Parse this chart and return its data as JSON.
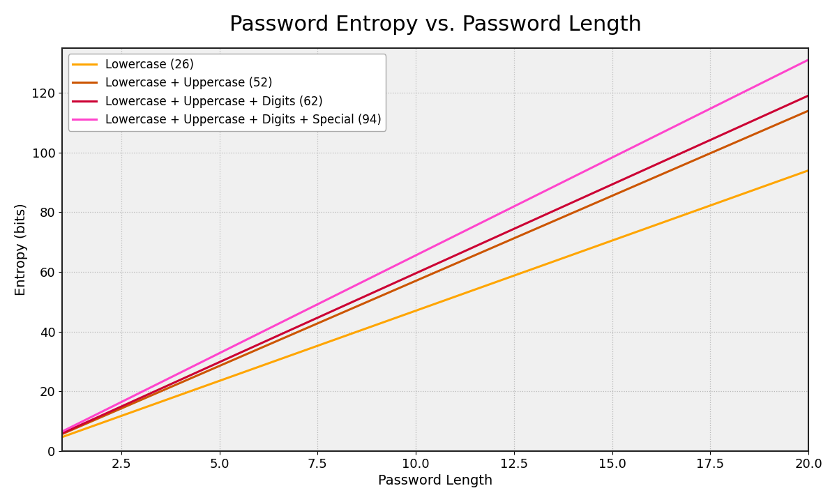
{
  "title": "Password Entropy vs. Password Length",
  "xlabel": "Password Length",
  "ylabel": "Entropy (bits)",
  "x_start": 1,
  "x_end": 20,
  "ylim": [
    0,
    135
  ],
  "xlim": [
    1,
    20
  ],
  "series": [
    {
      "label": "Lowercase (26)",
      "charset_size": 26,
      "color": "#FFA500"
    },
    {
      "label": "Lowercase + Uppercase (52)",
      "charset_size": 52,
      "color": "#CC5500"
    },
    {
      "label": "Lowercase + Uppercase + Digits (62)",
      "charset_size": 62,
      "color": "#CC0033"
    },
    {
      "label": "Lowercase + Uppercase + Digits + Special (94)",
      "charset_size": 94,
      "color": "#FF44CC"
    }
  ],
  "plot_bg_color": "#f0f0f0",
  "fig_bg_color": "#ffffff",
  "grid_color": "#aaaaaa",
  "grid_linestyle": ":",
  "grid_alpha": 0.8,
  "title_fontsize": 22,
  "label_fontsize": 14,
  "legend_fontsize": 12,
  "tick_fontsize": 13,
  "line_width": 2.2,
  "spine_color": "#222222"
}
